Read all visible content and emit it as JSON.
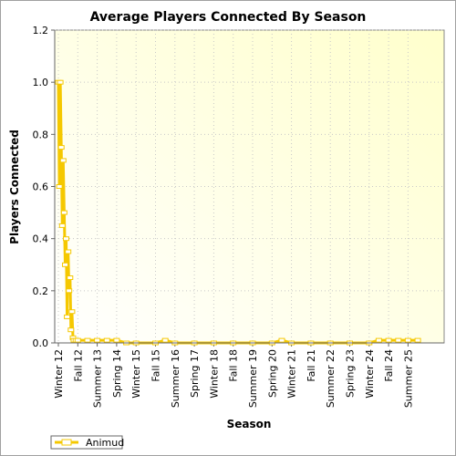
{
  "chart_data": {
    "type": "line",
    "title": "Average Players Connected By Season",
    "xlabel": "Season",
    "ylabel": "Players Connected",
    "ylim": [
      0.0,
      1.2
    ],
    "yticks": [
      "0.0",
      "0.2",
      "0.4",
      "0.6",
      "0.8",
      "1.0",
      "1.2"
    ],
    "ytick_values": [
      0.0,
      0.2,
      0.4,
      0.6,
      0.8,
      1.0,
      1.2
    ],
    "categories": [
      "Winter 12",
      "Fall 12",
      "Summer 13",
      "Spring 14",
      "Winter 15",
      "Fall 15",
      "Summer 16",
      "Spring 17",
      "Winter 18",
      "Fall 18",
      "Summer 19",
      "Spring 20",
      "Winter 21",
      "Fall 21",
      "Summer 22",
      "Spring 23",
      "Winter 24",
      "Fall 24",
      "Summer 25"
    ],
    "grid": true,
    "legend_position": "bottom-left",
    "series": [
      {
        "name": "Animud",
        "color": "#f5c800",
        "x": [
          0,
          0.05,
          0.1,
          0.15,
          0.2,
          0.25,
          0.3,
          0.35,
          0.4,
          0.45,
          0.5,
          0.55,
          0.6,
          0.65,
          0.7,
          0.75,
          0.8,
          0.9,
          1.0,
          1.5,
          2.0,
          2.5,
          3.0,
          3.5,
          4.0,
          5.0,
          5.5,
          6.0,
          7.0,
          8.0,
          9.0,
          10.0,
          11.0,
          11.5,
          12.0,
          13.0,
          14.0,
          15.0,
          16.0,
          16.5,
          17.0,
          17.5,
          18.0,
          18.5
        ],
        "values": [
          1.0,
          0.6,
          1.0,
          0.75,
          0.45,
          0.7,
          0.5,
          0.3,
          0.4,
          0.1,
          0.35,
          0.2,
          0.25,
          0.05,
          0.12,
          0.02,
          0.01,
          0.01,
          0.01,
          0.01,
          0.01,
          0.01,
          0.01,
          0.0,
          0.0,
          0.0,
          0.01,
          0.0,
          0.0,
          0.0,
          0.0,
          0.0,
          0.0,
          0.01,
          0.0,
          0.0,
          0.0,
          0.0,
          0.0,
          0.01,
          0.01,
          0.01,
          0.01,
          0.01
        ]
      }
    ]
  }
}
